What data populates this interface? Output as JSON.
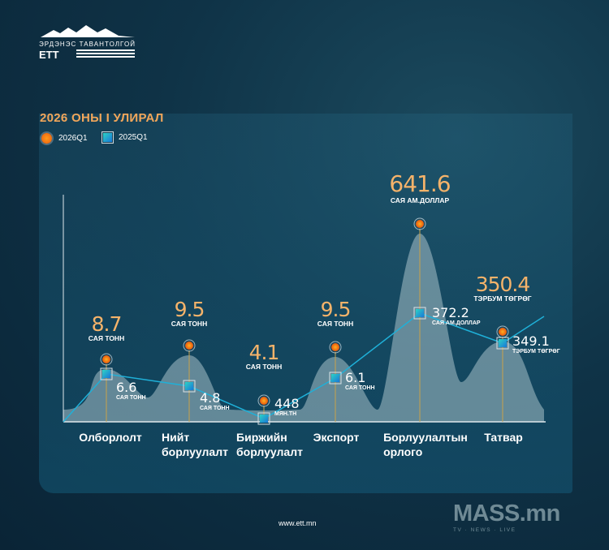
{
  "brand": {
    "logo_text": "ЭРДЭНЭС ТАВАНТОЛГОЙ",
    "logo_mark": "ЕТТ",
    "website": "www.ett.mn",
    "watermark": "MASS.mn",
    "watermark_tagline": "TV · NEWS · LIVE"
  },
  "colors": {
    "title": "#f2a65a",
    "series_2026": "#ff8c1a",
    "series_2025": "#1fa3e0",
    "value_2026": "#f5b36a"
  },
  "chart_data": {
    "type": "line",
    "title": "2026 ОНЫ I УЛИРАЛ",
    "legend_placement": "top-left",
    "categories": [
      "Олборлолт",
      "Нийт борлуулалт",
      "Биржийн борлуулалт",
      "Экспорт",
      "Борлуулалтын орлого",
      "Татвар"
    ],
    "series": [
      {
        "name": "2026Q1",
        "values": [
          8.7,
          9.5,
          4.1,
          9.5,
          641.6,
          350.4
        ],
        "value_labels": [
          "8.7",
          "9.5",
          "4.1",
          "9.5",
          "641.6",
          "350.4"
        ],
        "units": [
          "САЯ ТОНН",
          "САЯ ТОНН",
          "САЯ ТОНН",
          "САЯ ТОНН",
          "САЯ АМ.ДОЛЛАР",
          "ТЭРБУМ ТӨГРӨГ"
        ]
      },
      {
        "name": "2025Q1",
        "values": [
          6.6,
          4.8,
          448,
          6.1,
          372.2,
          349.1
        ],
        "value_labels": [
          "6.6",
          "4.8",
          "448",
          "6.1",
          "372.2",
          "349.1"
        ],
        "units": [
          "САЯ ТОНН",
          "САЯ ТОНН",
          "МЯН.ТН",
          "САЯ ТОНН",
          "САЯ АМ.ДОЛЛАР",
          "ТЭРБУМ ТӨГРӨГ"
        ]
      }
    ]
  }
}
